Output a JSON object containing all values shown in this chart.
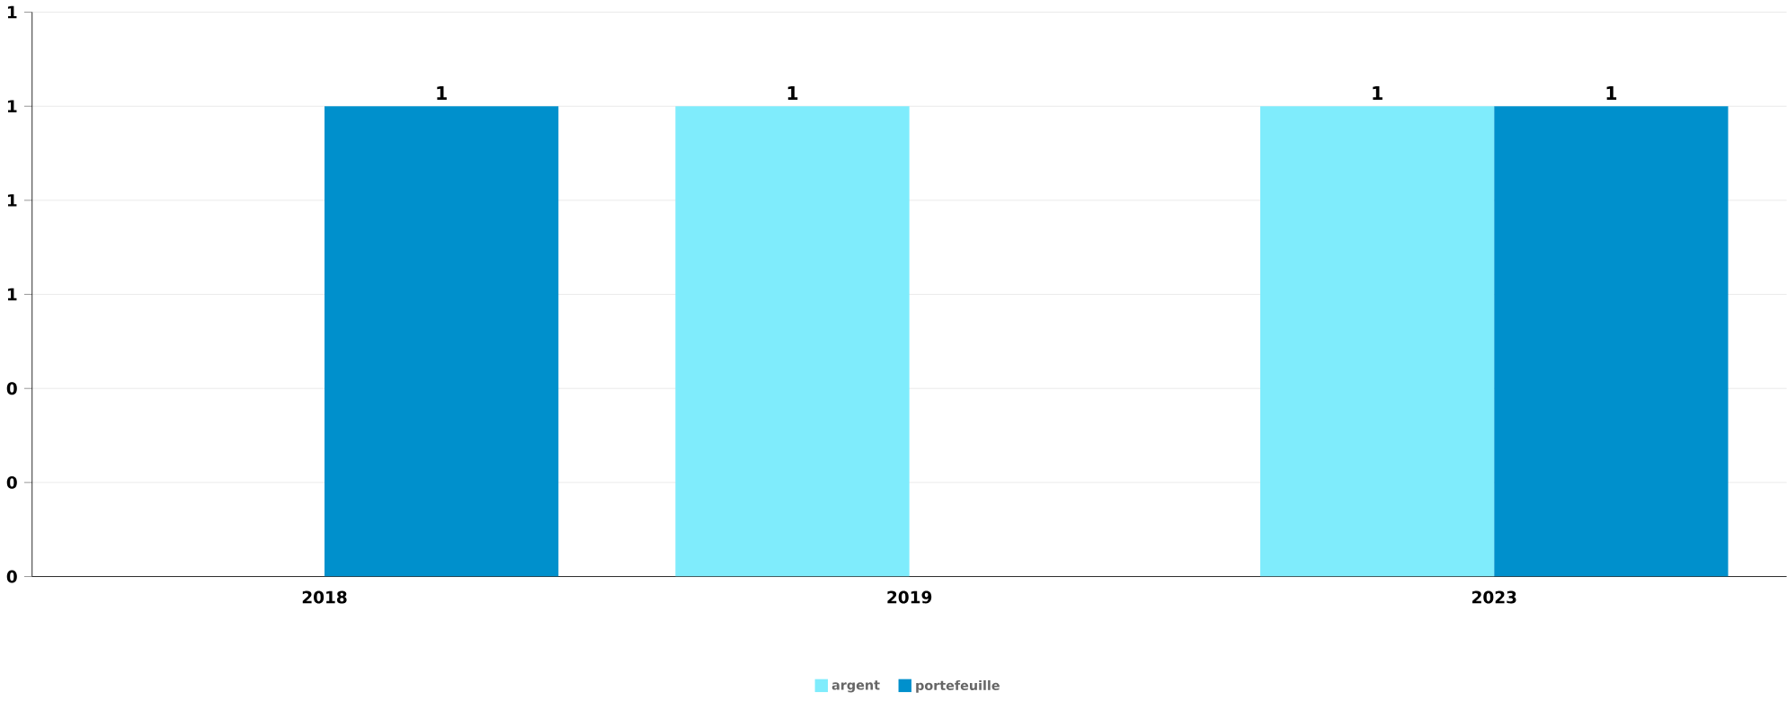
{
  "chart_data": {
    "type": "bar",
    "categories": [
      "2018",
      "2019",
      "2023"
    ],
    "series": [
      {
        "name": "argent",
        "color": "#7fecfc",
        "values": [
          null,
          1,
          1
        ],
        "value_labels": [
          null,
          "1",
          "1"
        ]
      },
      {
        "name": "portefeuille",
        "color": "#0090cc",
        "values": [
          1,
          null,
          1
        ],
        "value_labels": [
          "1",
          null,
          "1"
        ]
      }
    ],
    "ylim": [
      0,
      1.2
    ],
    "yticks": [
      {
        "value": 0,
        "label": "0"
      },
      {
        "value": 0.2,
        "label": "0"
      },
      {
        "value": 0.4,
        "label": "0"
      },
      {
        "value": 0.6,
        "label": "1"
      },
      {
        "value": 0.8,
        "label": "1"
      },
      {
        "value": 1.0,
        "label": "1"
      },
      {
        "value": 1.2,
        "label": "1"
      }
    ],
    "grid": "y",
    "legend": "bottom"
  }
}
